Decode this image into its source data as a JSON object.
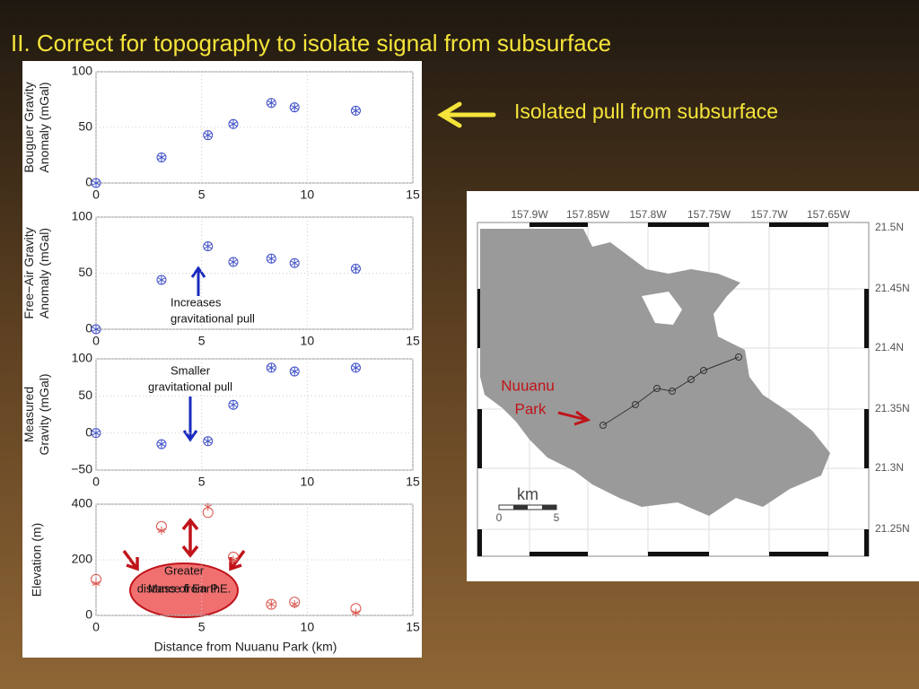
{
  "slide_title": "II. Correct for topography to isolate signal from subsurface",
  "callout": "Isolated pull from subsurface",
  "chart_data": [
    {
      "type": "scatter",
      "ylabel": [
        "Bouguer Gravity",
        "Anomaly (mGal)"
      ],
      "x": [
        0,
        3.1,
        5.3,
        6.5,
        8.3,
        9.4,
        12.3
      ],
      "series": [
        {
          "color": "#3f4fc8",
          "marker": "circle-star",
          "values": [
            0,
            23,
            43,
            53,
            72,
            68,
            65
          ]
        }
      ],
      "xlim": [
        0,
        15
      ],
      "xticks": [
        0,
        5,
        10,
        15
      ],
      "ylim": [
        0,
        100
      ],
      "yticks": [
        0,
        50,
        100
      ],
      "grid": true
    },
    {
      "type": "scatter",
      "ylabel": [
        "Free−Air Gravity",
        "Anomaly (mGal)"
      ],
      "x": [
        0,
        3.1,
        5.3,
        6.5,
        8.3,
        9.4,
        12.3
      ],
      "series": [
        {
          "color": "#3f4fc8",
          "marker": "circle-star",
          "values": [
            0,
            44,
            74,
            60,
            63,
            59,
            54
          ]
        }
      ],
      "xlim": [
        0,
        15
      ],
      "xticks": [
        0,
        5,
        10,
        15
      ],
      "ylim": [
        0,
        100
      ],
      "yticks": [
        0,
        50,
        100
      ],
      "grid": true,
      "annotation": [
        "Increases",
        "gravitational pull"
      ]
    },
    {
      "type": "scatter",
      "ylabel": [
        "Measured",
        "Gravity (mGal)"
      ],
      "x": [
        0,
        3.1,
        5.3,
        6.5,
        8.3,
        9.4,
        12.3
      ],
      "series": [
        {
          "color": "#3f4fc8",
          "marker": "circle-star",
          "values": [
            0,
            -15,
            -11,
            38,
            88,
            83,
            88
          ]
        }
      ],
      "xlim": [
        0,
        15
      ],
      "xticks": [
        0,
        5,
        10,
        15
      ],
      "ylim": [
        -50,
        100
      ],
      "yticks": [
        {
          "value": -50,
          "label": "−50"
        },
        0,
        50,
        100
      ],
      "grid": true,
      "annotation": [
        "Smaller",
        "gravitational pull"
      ]
    },
    {
      "type": "scatter",
      "ylabel": [
        "Elevation (m)"
      ],
      "xlabel": "Distance from Nuuanu Park (km)",
      "x": [
        0,
        3.1,
        5.3,
        6.5,
        8.3,
        9.4,
        12.3
      ],
      "series": [
        {
          "color": "#d9534a",
          "marker": "circle",
          "values": [
            130,
            320,
            370,
            210,
            40,
            48,
            25
          ]
        },
        {
          "color": "#d9534a",
          "marker": "star",
          "values": [
            115,
            305,
            390,
            200,
            40,
            40,
            10
          ]
        }
      ],
      "xlim": [
        0,
        15
      ],
      "xticks": [
        0,
        5,
        10,
        15
      ],
      "ylim": [
        0,
        400
      ],
      "yticks": [
        0,
        200,
        400
      ],
      "grid": true,
      "annotation": [
        "Greater",
        "distance from P.E.",
        "Mass of Earth"
      ]
    }
  ],
  "map": {
    "lon_labels": [
      "157.9W",
      "157.85W",
      "157.8W",
      "157.75W",
      "157.7W",
      "157.65W"
    ],
    "lat_labels": [
      "21.5N",
      "21.45N",
      "21.4N",
      "21.35N",
      "21.3N",
      "21.25N"
    ],
    "scale_unit": "km",
    "scale_ticks": [
      "0",
      "5"
    ],
    "place": [
      "Nuuanu",
      "Park"
    ]
  }
}
